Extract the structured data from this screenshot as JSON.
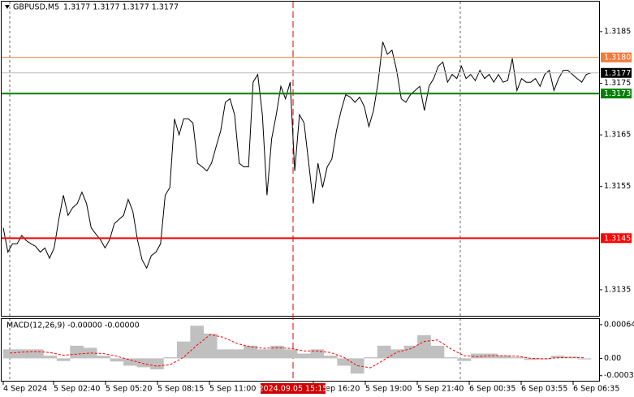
{
  "chart_data": [
    {
      "type": "line",
      "title": "GBPUSD,M5",
      "ohlc_text": "1.3177 1.3177 1.3177 1.3177",
      "color": "#000000",
      "values": [
        1.3147,
        1.31423,
        1.31439,
        1.31439,
        1.31455,
        1.31445,
        1.31439,
        1.31434,
        1.31423,
        1.31431,
        1.31411,
        1.31431,
        1.31486,
        1.31533,
        1.31494,
        1.31509,
        1.31517,
        1.31539,
        1.31517,
        1.3147,
        1.31458,
        1.31447,
        1.31431,
        1.31447,
        1.31478,
        1.31486,
        1.31494,
        1.31525,
        1.31502,
        1.31447,
        1.31408,
        1.31392,
        1.31416,
        1.31423,
        1.31439,
        1.31533,
        1.31548,
        1.31681,
        1.3165,
        1.31681,
        1.31681,
        1.31673,
        1.31595,
        1.31588,
        1.3158,
        1.31595,
        1.31627,
        1.31658,
        1.31713,
        1.3172,
        1.31689,
        1.31595,
        1.31588,
        1.31588,
        1.31752,
        1.31767,
        1.31689,
        1.31533,
        1.31642,
        1.31689,
        1.31744,
        1.3172,
        1.31752,
        1.3158,
        1.31689,
        1.31673,
        1.31595,
        1.31517,
        1.31595,
        1.31548,
        1.31588,
        1.31603,
        1.31658,
        1.31697,
        1.31728,
        1.31723,
        1.31713,
        1.31723,
        1.31705,
        1.31666,
        1.31697,
        1.31752,
        1.3183,
        1.31806,
        1.31814,
        1.31775,
        1.3172,
        1.31713,
        1.31728,
        1.31736,
        1.31744,
        1.31697,
        1.31744,
        1.31759,
        1.31783,
        1.31791,
        1.31752,
        1.31767,
        1.31759,
        1.31783,
        1.31759,
        1.31767,
        1.31755,
        1.31775,
        1.31759,
        1.31767,
        1.31752,
        1.31767,
        1.31752,
        1.31755,
        1.31798,
        1.31736,
        1.31759,
        1.31752,
        1.31752,
        1.31759,
        1.31744,
        1.31767,
        1.31775,
        1.31736,
        1.31759,
        1.31775,
        1.31775,
        1.31767,
        1.31759,
        1.31752,
        1.31767,
        1.3177
      ],
      "ylim": [
        1.31298,
        1.31908
      ],
      "yticks": [
        1.3185,
        1.3175,
        1.3165,
        1.3155,
        1.3135
      ],
      "levels": [
        {
          "value": 1.318,
          "label": "1.3180",
          "color": "#f07a3c"
        },
        {
          "value": 1.3177,
          "label": "1.3177",
          "color": "#000000"
        },
        {
          "value": 1.3173,
          "label": "1.3173",
          "color": "#008000"
        },
        {
          "value": 1.3145,
          "label": "1.3145",
          "color": "#ff0000"
        }
      ],
      "x_labels": [
        "4 Sep 2024",
        "5 Sep 02:40",
        "5 Sep 05:20",
        "5 Sep 08:15",
        "5 Sep 11:00",
        "5 Sep 16:20",
        "5 Sep 19:00",
        "5 Sep 21:40",
        "6 Sep 00:35",
        "6 Sep 03:55",
        "6 Sep 06:35"
      ],
      "cursor_label": "2024.09.05 15:15"
    },
    {
      "type": "macd",
      "title": "MACD(12,26,9) -0.00000 -0.00000",
      "series": [
        {
          "name": "MACD",
          "color": "#c0c0c0",
          "values": [
            0.00017,
            0.00017,
            0.00017,
            5e-05,
            -5e-05,
            0.00024,
            0.0002,
            5e-05,
            -6e-05,
            -0.00014,
            -0.00017,
            -0.00021,
            2e-05,
            0.00032,
            0.00062,
            0.00047,
            0.00017,
            0.00017,
            0.00024,
            0.00017,
            0.00024,
            0.00017,
            9e-05,
            0.00017,
            5e-05,
            -0.00014,
            -0.00029,
            2e-05,
            0.00024,
            0.00017,
            0.00024,
            0.00044,
            0.00024,
            2e-05,
            -5e-05,
            9e-05,
            9e-05,
            5e-05,
            2e-05,
            -3e-05,
            -2e-05,
            5e-05,
            3e-05,
            -2e-05
          ]
        },
        {
          "name": "Signal",
          "color": "#ff0000",
          "values": [
            0.0001,
            0.00012,
            0.00013,
            0.00011,
            6e-05,
            8e-05,
            0.0001,
            9e-05,
            4e-05,
            -3e-05,
            -0.0001,
            -0.00015,
            -0.00012,
            2e-05,
            0.00025,
            0.00045,
            0.0004,
            0.00028,
            0.00022,
            0.00019,
            0.0002,
            0.00019,
            0.00014,
            0.00014,
            0.00011,
            2e-05,
            -0.00014,
            -0.00018,
            -3e-05,
            0.00012,
            0.00018,
            0.00032,
            0.00035,
            0.00018,
            5e-05,
            3e-05,
            5e-05,
            5e-05,
            4e-05,
            0,
            -1e-05,
            1e-05,
            2e-05,
            1e-05
          ]
        }
      ],
      "ylim": [
        -0.000442,
        0.000747
      ],
      "yticks": [
        0.00064,
        {
          "value": 0,
          "label": "0.00"
        },
        -0.00033
      ]
    }
  ]
}
